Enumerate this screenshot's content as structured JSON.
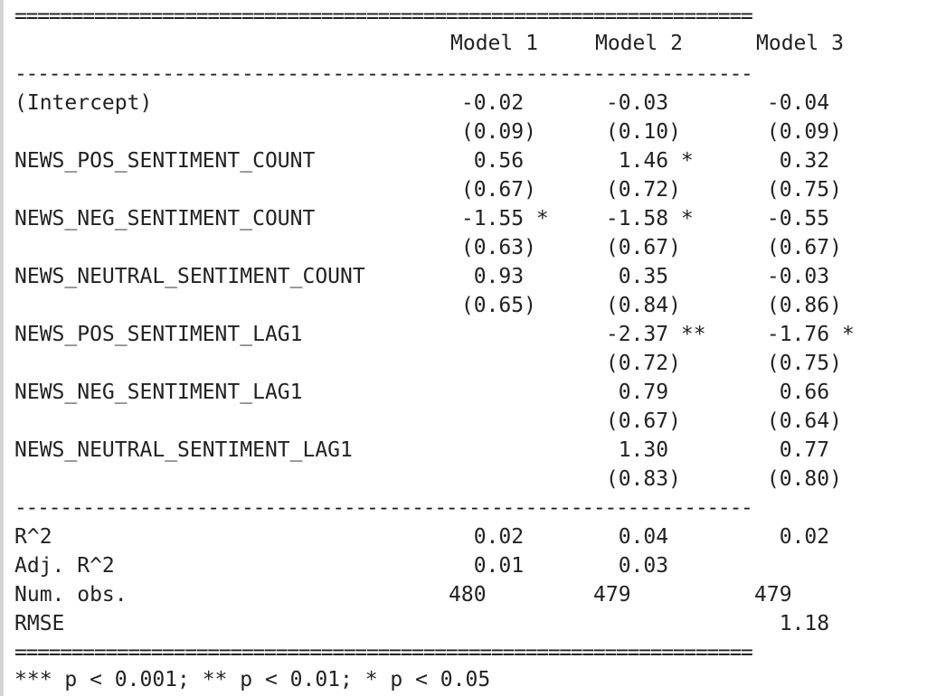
{
  "rules": {
    "double": "=================================================================",
    "single": "-----------------------------------------------------------------"
  },
  "header": {
    "model1": "Model 1",
    "model2": "Model 2",
    "model3": "Model 3"
  },
  "coefficients": [
    {
      "label": "(Intercept)",
      "m1": " -0.02",
      "m1se": " (0.09)",
      "m2": " -0.03",
      "m2se": " (0.10)",
      "m3": " -0.04",
      "m3se": " (0.09)"
    },
    {
      "label": "NEWS_POS_SENTIMENT_COUNT",
      "m1": "  0.56",
      "m1se": " (0.67)",
      "m2": "  1.46 *",
      "m2se": " (0.72)",
      "m3": "  0.32",
      "m3se": " (0.75)"
    },
    {
      "label": "NEWS_NEG_SENTIMENT_COUNT",
      "m1": " -1.55 *",
      "m1se": " (0.63)",
      "m2": " -1.58 *",
      "m2se": " (0.67)",
      "m3": " -0.55",
      "m3se": " (0.67)"
    },
    {
      "label": "NEWS_NEUTRAL_SENTIMENT_COUNT",
      "m1": "  0.93",
      "m1se": " (0.65)",
      "m2": "  0.35",
      "m2se": " (0.84)",
      "m3": " -0.03",
      "m3se": " (0.86)"
    },
    {
      "label": "NEWS_POS_SENTIMENT_LAG1",
      "m1": "",
      "m1se": "",
      "m2": " -2.37 **",
      "m2se": " (0.72)",
      "m3": " -1.76 *",
      "m3se": " (0.75)"
    },
    {
      "label": "NEWS_NEG_SENTIMENT_LAG1",
      "m1": "",
      "m1se": "",
      "m2": "  0.79",
      "m2se": " (0.67)",
      "m3": "  0.66",
      "m3se": " (0.64)"
    },
    {
      "label": "NEWS_NEUTRAL_SENTIMENT_LAG1",
      "m1": "",
      "m1se": "",
      "m2": "  1.30",
      "m2se": " (0.83)",
      "m3": "  0.77",
      "m3se": " (0.80)"
    }
  ],
  "stats": [
    {
      "label": "R^2",
      "m1": "  0.02",
      "m2": "  0.04",
      "m3": "  0.02"
    },
    {
      "label": "Adj. R^2",
      "m1": "  0.01",
      "m2": "  0.03",
      "m3": ""
    },
    {
      "label": "Num. obs.",
      "m1": "480",
      "m2": "479",
      "m3": "479"
    },
    {
      "label": "RMSE",
      "m1": "",
      "m2": "",
      "m3": "  1.18"
    }
  ],
  "footnote": "*** p < 0.001; ** p < 0.01; * p < 0.05"
}
